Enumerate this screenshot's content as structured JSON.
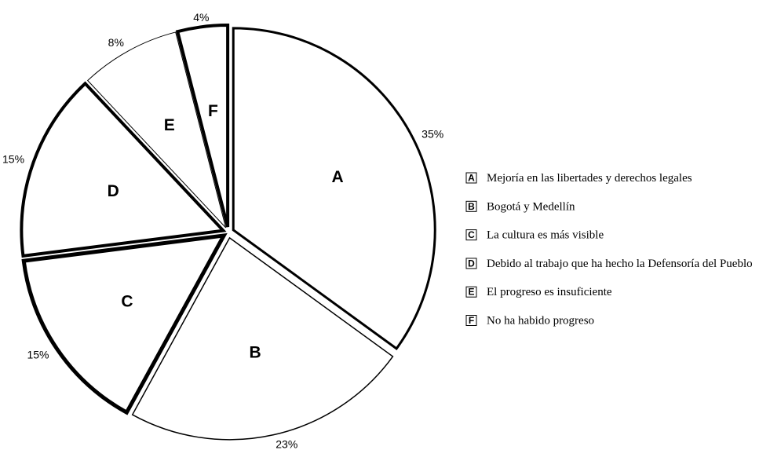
{
  "chart_data": {
    "type": "pie",
    "slices": [
      {
        "letter": "A",
        "value": 35,
        "label": "35%",
        "legend": "Mejoría en las libertades y derechos legales"
      },
      {
        "letter": "B",
        "value": 23,
        "label": "23%",
        "legend": "Bogotá y Medellín"
      },
      {
        "letter": "C",
        "value": 15,
        "label": "15%",
        "legend": "La cultura es más visible"
      },
      {
        "letter": "D",
        "value": 15,
        "label": "15%",
        "legend": "Debido al trabajo que ha hecho la Defensoría del Pueblo"
      },
      {
        "letter": "E",
        "value": 8,
        "label": "8%",
        "legend": "El progreso es insuficiente"
      },
      {
        "letter": "F",
        "value": 4,
        "label": "4%",
        "legend": "No ha habido progreso"
      }
    ],
    "start": "12 o'clock",
    "direction": "clockwise",
    "slices_exploded": true,
    "legend_position": "right",
    "colors": {
      "fill": "#ffffff",
      "stroke": "#000000"
    }
  }
}
